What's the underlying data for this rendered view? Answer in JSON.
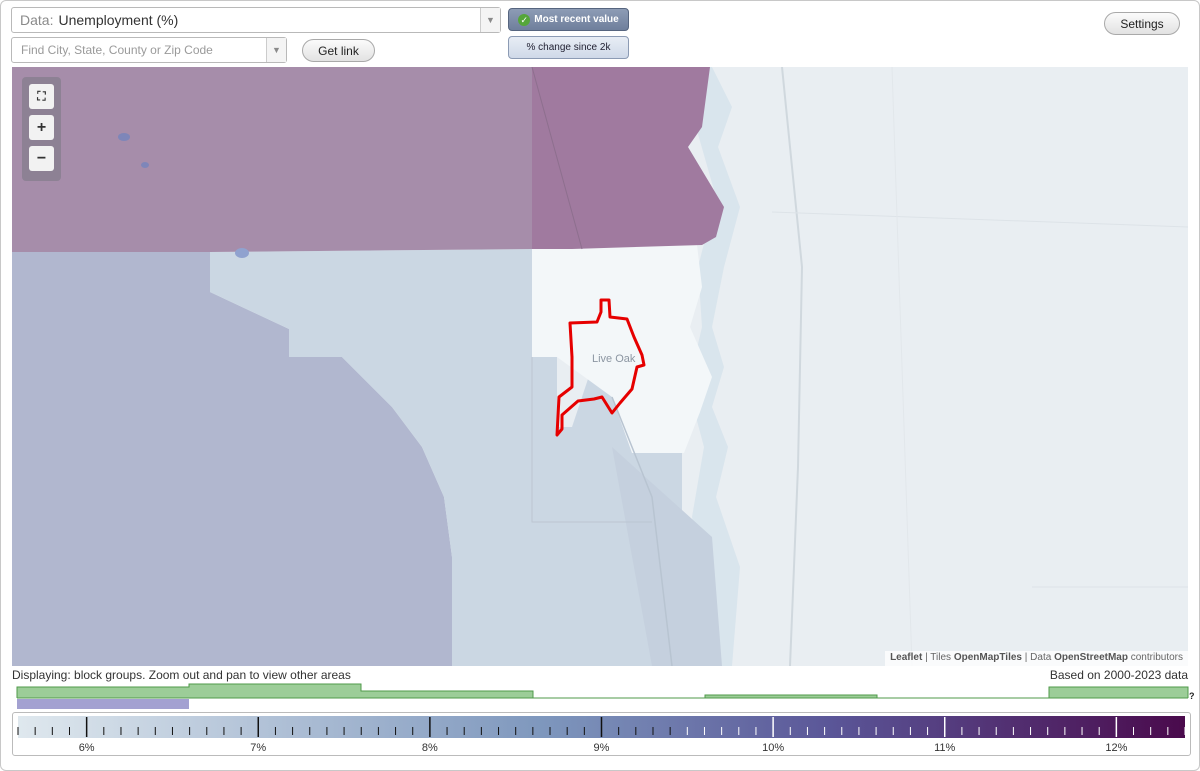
{
  "controls": {
    "data_label": "Data:",
    "data_value": "Unemployment (%)",
    "search_placeholder": "Find City, State, County or Zip Code",
    "get_link": "Get link",
    "most_recent": "Most recent value",
    "pct_change": "% change since 2k",
    "settings": "Settings"
  },
  "map": {
    "city_label": "Live Oak",
    "zoom_in": "+",
    "zoom_out": "−",
    "attribution": {
      "leaflet": "Leaflet",
      "tiles_prefix": "Tiles",
      "tiles": "OpenMapTiles",
      "data_prefix": "Data",
      "data": "OpenStreetMap",
      "suffix": "contributors"
    },
    "highlight_color": "#e60000"
  },
  "info": {
    "displaying": "Displaying: block groups. Zoom out and pan to view other areas",
    "based_on": "Based on 2000-2023 data",
    "help": "?"
  },
  "legend": {
    "ticks": [
      "6%",
      "7%",
      "8%",
      "9%",
      "10%",
      "11%",
      "12%"
    ],
    "range": [
      5.6,
      12.4
    ],
    "color_low": "#dfe8ee",
    "color_high": "#4a0a4c"
  },
  "icons": [
    "check-icon",
    "fullscreen-icon",
    "zoom-in-icon",
    "zoom-out-icon",
    "chevron-down-icon"
  ]
}
